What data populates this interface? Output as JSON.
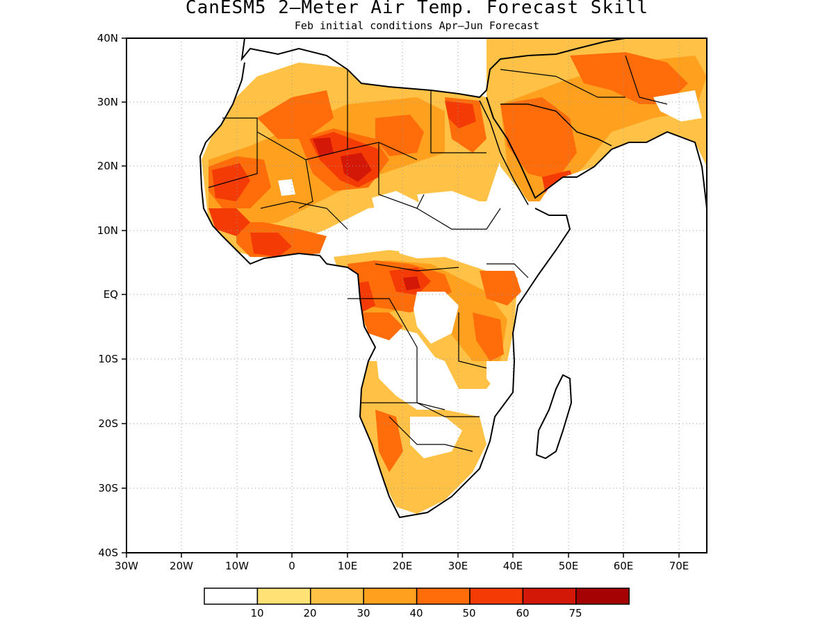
{
  "title": "CanESM5 2–Meter Air Temp. Forecast Skill",
  "subtitle": "Feb initial conditions  Apr–Jun Forecast",
  "map": {
    "lon_range": [
      -30,
      75
    ],
    "lat_range": [
      -40,
      40
    ],
    "x_ticks": [
      "30W",
      "20W",
      "10W",
      "0",
      "10E",
      "20E",
      "30E",
      "40E",
      "50E",
      "60E",
      "70E"
    ],
    "y_ticks": [
      "40N",
      "30N",
      "20N",
      "10N",
      "EQ",
      "10S",
      "20S",
      "30S",
      "40S"
    ],
    "grid": "dotted"
  },
  "colorbar": {
    "labels": [
      "10",
      "20",
      "30",
      "40",
      "50",
      "60",
      "75"
    ],
    "colors": [
      "#ffffff",
      "#ffe176",
      "#ffc247",
      "#ffa11f",
      "#ff6c0a",
      "#f53b05",
      "#d41807",
      "#a50303"
    ]
  }
}
